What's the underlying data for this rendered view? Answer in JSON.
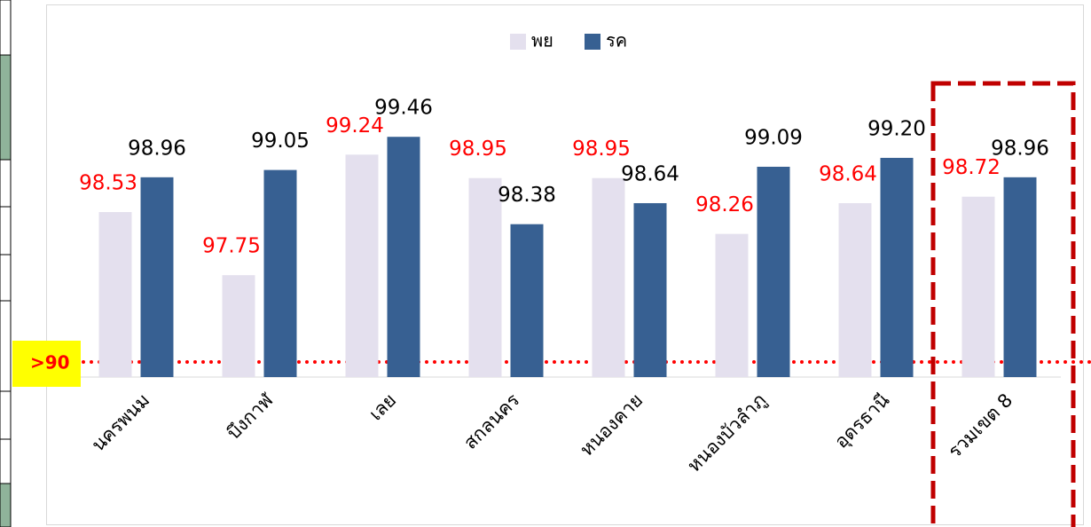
{
  "chart_data": {
    "type": "bar",
    "categories": [
      "นครพนม",
      "บึงกาฬ",
      "เลย",
      "สกลนคร",
      "หนองคาย",
      "หนองบัวลำภู",
      "อุดรธานี",
      "รวมเขต 8"
    ],
    "series": [
      {
        "name": "พย",
        "color": "#e4e0ee",
        "label_color": "#ff0000",
        "values": [
          98.53,
          97.75,
          99.24,
          98.95,
          98.95,
          98.26,
          98.64,
          98.72
        ],
        "value_labels": [
          "98.53",
          "97.75",
          "99.24",
          "98.95",
          "98.95",
          "98.26",
          "98.64",
          "98.72"
        ]
      },
      {
        "name": "รค",
        "color": "#376092",
        "label_color": "#000000",
        "values": [
          98.96,
          99.05,
          99.46,
          98.38,
          98.64,
          99.09,
          99.2,
          98.96
        ],
        "value_labels": [
          "98.96",
          "99.05",
          "99.46",
          "98.38",
          "98.64",
          "99.09",
          "99.20",
          "98.96"
        ]
      }
    ],
    "ylim": [
      96.49,
      100
    ],
    "annotations": [
      ">90"
    ]
  }
}
